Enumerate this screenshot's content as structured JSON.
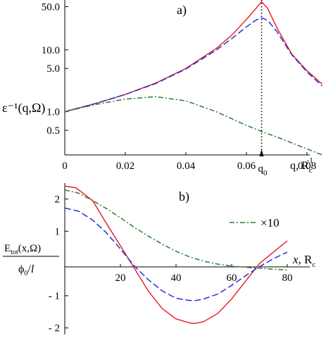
{
  "colors": {
    "exact": "#e8262b",
    "approx": "#2430d8",
    "component": "#2e7d32",
    "axis": "#000000"
  },
  "chart_data": [
    {
      "panel_label": "a)",
      "type": "line",
      "yscale": "log",
      "xlim": [
        0,
        0.08
      ],
      "ylim": [
        0.2,
        64
      ],
      "xlabel_parts": [
        "q, R",
        "c",
        "-1"
      ],
      "ylabel": "ε⁻¹(q,Ω)",
      "xticks": [
        "0",
        "0.02",
        "0.04",
        "0.06",
        "0.08"
      ],
      "xtick_values": [
        0,
        0.02,
        0.04,
        0.06,
        0.08
      ],
      "yticks": [
        "0.5",
        "1.0",
        "5.0",
        "10.0",
        "50.0"
      ],
      "ytick_values": [
        0.5,
        1.0,
        5.0,
        10.0,
        50.0
      ],
      "annotation": {
        "text": "q",
        "subscript": "0",
        "x": 0.065
      },
      "series": [
        {
          "color_key": "exact",
          "dash": "solid",
          "x": [
            0,
            0.01,
            0.02,
            0.03,
            0.04,
            0.05,
            0.055,
            0.06,
            0.063,
            0.065,
            0.067,
            0.07,
            0.075,
            0.08,
            0.085
          ],
          "y": [
            1.0,
            1.35,
            1.9,
            2.9,
            5.0,
            10.5,
            17,
            31,
            46,
            60,
            47,
            23,
            8.5,
            4.6,
            2.8
          ]
        },
        {
          "color_key": "approx",
          "dash": "dashed",
          "x": [
            0,
            0.01,
            0.02,
            0.03,
            0.04,
            0.05,
            0.055,
            0.06,
            0.063,
            0.065,
            0.067,
            0.07,
            0.075,
            0.08,
            0.085
          ],
          "y": [
            1.0,
            1.35,
            1.9,
            2.85,
            4.9,
            9.9,
            15,
            23.5,
            30,
            33,
            30,
            20,
            8.3,
            4.4,
            2.6
          ]
        },
        {
          "color_key": "component",
          "dash": "dashdot",
          "x": [
            0,
            0.01,
            0.02,
            0.03,
            0.04,
            0.05,
            0.06,
            0.065,
            0.07,
            0.08,
            0.085
          ],
          "y": [
            1.0,
            1.3,
            1.6,
            1.75,
            1.5,
            1.0,
            0.6,
            0.48,
            0.39,
            0.25,
            0.2
          ]
        }
      ]
    },
    {
      "panel_label": "b)",
      "type": "line",
      "xlim": [
        0,
        80
      ],
      "ylim": [
        -2.05,
        2.45
      ],
      "xlabel_parts": [
        "x",
        ", R",
        "c"
      ],
      "ylabel_parts": [
        "E",
        "tot",
        "(x,Ω)",
        "ϕ",
        "0",
        "/",
        "l"
      ],
      "xticks": [
        "20",
        "40",
        "60",
        "80"
      ],
      "xtick_values": [
        20,
        40,
        60,
        80
      ],
      "yticks": [
        "2",
        "1",
        "- 1",
        "- 2"
      ],
      "ytick_values": [
        2,
        1,
        -1,
        -2
      ],
      "legend": {
        "label": "×10",
        "color_key": "component"
      },
      "series": [
        {
          "color_key": "exact",
          "dash": "solid",
          "x": [
            0,
            4,
            10,
            16,
            20,
            25,
            30,
            35,
            40,
            45,
            47,
            50,
            55,
            60,
            65,
            70,
            75,
            80
          ],
          "y": [
            2.4,
            2.35,
            1.95,
            1.1,
            0.55,
            -0.15,
            -0.85,
            -1.4,
            -1.72,
            -1.85,
            -1.86,
            -1.8,
            -1.55,
            -1.1,
            -0.55,
            0.0,
            0.35,
            0.7
          ]
        },
        {
          "color_key": "approx",
          "dash": "dashed",
          "x": [
            0,
            5,
            10,
            15,
            20,
            25,
            30,
            35,
            40,
            45,
            47,
            50,
            55,
            60,
            65,
            70,
            75,
            80
          ],
          "y": [
            1.72,
            1.62,
            1.35,
            0.95,
            0.45,
            -0.08,
            -0.5,
            -0.85,
            -1.08,
            -1.15,
            -1.15,
            -1.1,
            -0.95,
            -0.68,
            -0.38,
            -0.1,
            0.15,
            0.35
          ]
        },
        {
          "color_key": "component",
          "dash": "dashdot",
          "x": [
            0,
            5,
            10,
            15,
            20,
            25,
            30,
            35,
            40,
            45,
            50,
            55,
            60,
            65,
            70,
            75,
            80
          ],
          "y": [
            2.28,
            2.18,
            1.95,
            1.7,
            1.42,
            1.12,
            0.85,
            0.6,
            0.38,
            0.2,
            0.07,
            -0.02,
            -0.08,
            -0.12,
            -0.15,
            -0.18,
            -0.2
          ]
        }
      ]
    }
  ]
}
